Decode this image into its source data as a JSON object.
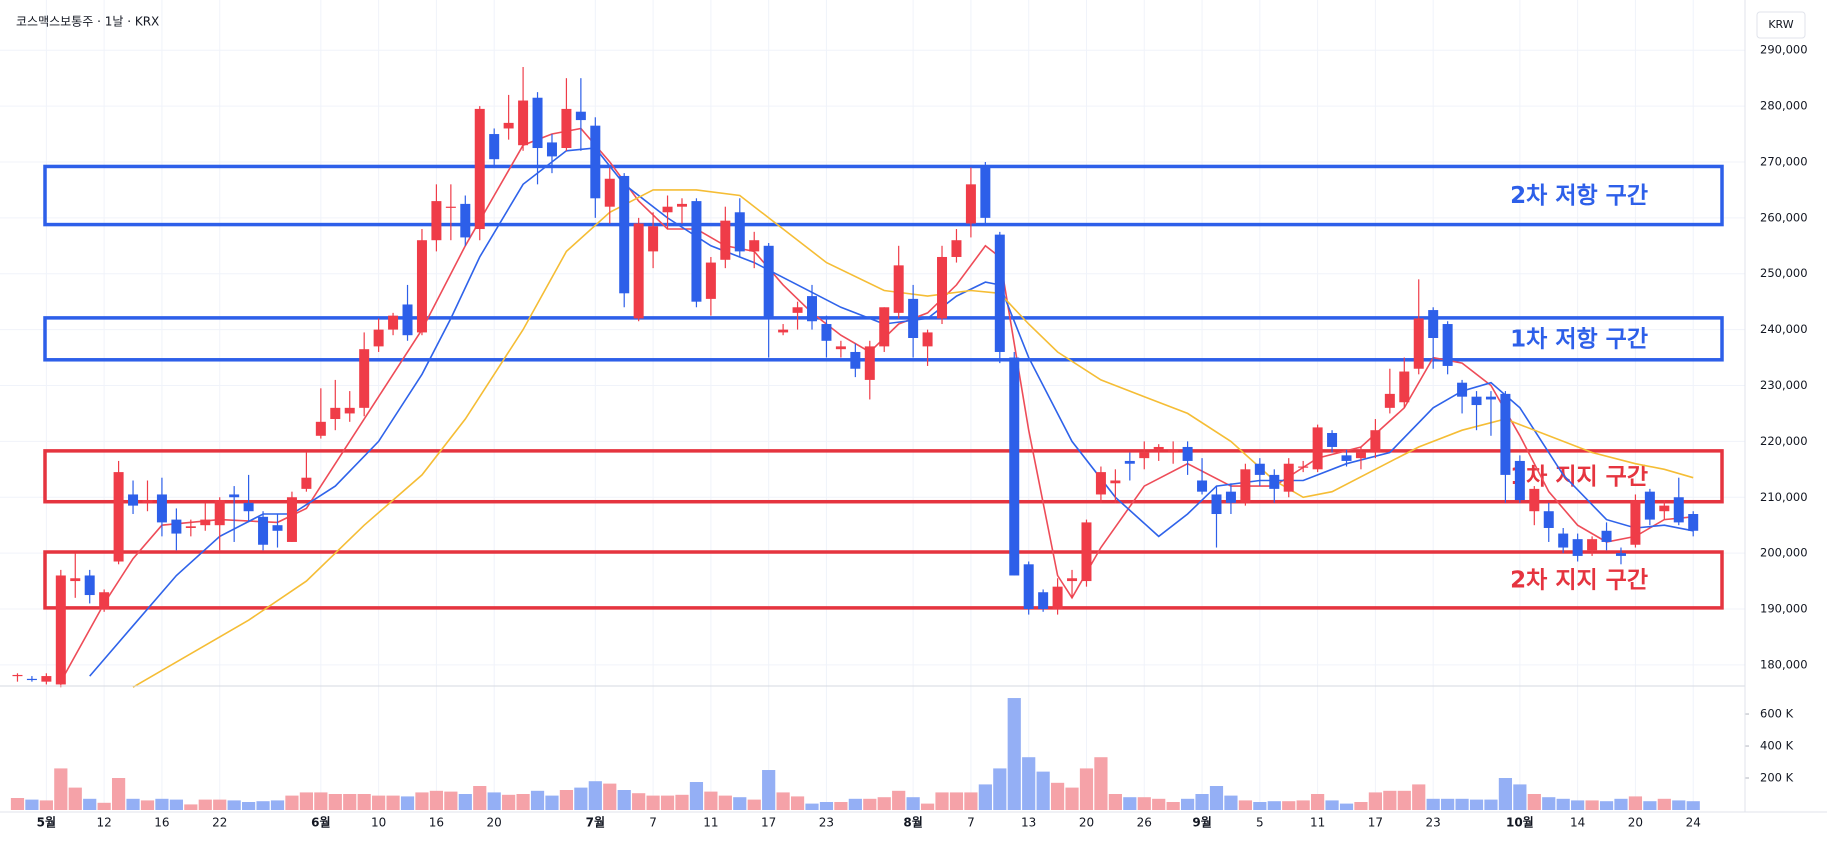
{
  "chart_data": {
    "type": "candlestick",
    "title": "코스맥스보통주 · 1날 · KRX",
    "currency": "KRW",
    "grid": true,
    "up_color": "#ef3c48",
    "down_color": "#2d5fe9",
    "categories": [
      null,
      null,
      "5월",
      null,
      null,
      null,
      "12",
      null,
      null,
      null,
      "16",
      null,
      null,
      null,
      "22",
      null,
      null,
      null,
      null,
      null,
      null,
      "6월",
      null,
      null,
      null,
      "10",
      null,
      null,
      null,
      "16",
      null,
      null,
      null,
      "20",
      null,
      null,
      null,
      null,
      null,
      null,
      "7월",
      null,
      null,
      null,
      "7",
      null,
      null,
      null,
      "11",
      null,
      null,
      null,
      "17",
      null,
      null,
      null,
      "23",
      null,
      null,
      null,
      null,
      null,
      "8월",
      null,
      null,
      null,
      "7",
      null,
      null,
      null,
      "13",
      null,
      null,
      null,
      "20",
      null,
      null,
      null,
      "26",
      null,
      null,
      null,
      "9월",
      null,
      null,
      null,
      "5",
      null,
      null,
      null,
      "11",
      null,
      null,
      null,
      "17",
      null,
      null,
      null,
      "23",
      null,
      null,
      null,
      null,
      null,
      "10월",
      null,
      null,
      null,
      "14",
      null,
      null,
      null,
      "20",
      null,
      null,
      null,
      "24"
    ],
    "ohlc": [
      [
        178000,
        178500,
        177000,
        178200
      ],
      [
        177500,
        178000,
        177000,
        177300
      ],
      [
        177000,
        178500,
        176500,
        178000
      ],
      [
        176500,
        197000,
        176000,
        196000
      ],
      [
        195000,
        200000,
        192000,
        195500
      ],
      [
        196000,
        197000,
        191000,
        192500
      ],
      [
        190000,
        193500,
        189500,
        193000
      ],
      [
        198500,
        216500,
        198000,
        214500
      ],
      [
        210500,
        213000,
        207000,
        208500
      ],
      [
        209000,
        213000,
        207500,
        209500
      ],
      [
        210500,
        213500,
        203000,
        205500
      ],
      [
        206000,
        208000,
        200500,
        203500
      ],
      [
        204500,
        206000,
        203000,
        204800
      ],
      [
        205000,
        209000,
        204000,
        206000
      ],
      [
        205000,
        210000,
        200500,
        209500
      ],
      [
        210500,
        212000,
        202000,
        210000
      ],
      [
        209000,
        214000,
        205500,
        207500
      ],
      [
        206500,
        207500,
        200500,
        201500
      ],
      [
        205000,
        207000,
        201000,
        204000
      ],
      [
        202000,
        211000,
        202000,
        210000
      ],
      [
        211500,
        218000,
        211000,
        213500
      ],
      [
        221000,
        229500,
        220500,
        223500
      ],
      [
        224000,
        231000,
        222000,
        226000
      ],
      [
        225000,
        229000,
        223500,
        226000
      ],
      [
        226000,
        239500,
        224500,
        236500
      ],
      [
        237000,
        242000,
        236000,
        240000
      ],
      [
        240000,
        243000,
        239000,
        242500
      ],
      [
        244500,
        248000,
        238000,
        239000
      ],
      [
        239500,
        258000,
        239000,
        256000
      ],
      [
        256000,
        266000,
        254000,
        263000
      ],
      [
        262000,
        266000,
        256000,
        262000
      ],
      [
        262500,
        264000,
        255000,
        256500
      ],
      [
        258000,
        280000,
        256000,
        279500
      ],
      [
        275000,
        276000,
        269000,
        270500
      ],
      [
        276000,
        282000,
        274000,
        277000
      ],
      [
        273000,
        287000,
        272000,
        281000
      ],
      [
        281500,
        282500,
        266000,
        272500
      ],
      [
        273500,
        275000,
        268000,
        271000
      ],
      [
        272500,
        285000,
        272000,
        279500
      ],
      [
        279000,
        285000,
        272000,
        277500
      ],
      [
        276500,
        278000,
        260000,
        263500
      ],
      [
        262000,
        269000,
        259000,
        267000
      ],
      [
        267500,
        268000,
        244000,
        246500
      ],
      [
        242000,
        260000,
        241500,
        259000
      ],
      [
        254000,
        261000,
        251000,
        258500
      ],
      [
        261000,
        264000,
        258000,
        262000
      ],
      [
        262000,
        263500,
        259000,
        262500
      ],
      [
        263000,
        263500,
        244000,
        245000
      ],
      [
        245500,
        253000,
        242500,
        252000
      ],
      [
        252500,
        262000,
        251000,
        259500
      ],
      [
        261000,
        263500,
        253000,
        254000
      ],
      [
        254000,
        257500,
        251000,
        256000
      ],
      [
        255000,
        255500,
        235000,
        242000
      ],
      [
        239500,
        241000,
        239000,
        240000
      ],
      [
        243000,
        245000,
        240000,
        244000
      ],
      [
        246000,
        248000,
        240000,
        241500
      ],
      [
        241000,
        242500,
        235000,
        238000
      ],
      [
        236500,
        238000,
        235000,
        237000
      ],
      [
        236000,
        237500,
        231500,
        233000
      ],
      [
        231000,
        238000,
        227500,
        237000
      ],
      [
        237000,
        244000,
        236000,
        244000
      ],
      [
        243000,
        255000,
        242000,
        251500
      ],
      [
        245500,
        248000,
        235000,
        238500
      ],
      [
        237000,
        240000,
        233500,
        239500
      ],
      [
        242000,
        255000,
        241000,
        253000
      ],
      [
        253000,
        258000,
        252000,
        256000
      ],
      [
        259000,
        269000,
        256500,
        266000
      ],
      [
        269000,
        270000,
        259000,
        260000
      ],
      [
        257000,
        257500,
        234000,
        236000
      ],
      [
        235000,
        236000,
        196000,
        196000
      ],
      [
        198000,
        198500,
        189000,
        190000
      ],
      [
        193000,
        193500,
        189500,
        190000
      ],
      [
        190000,
        195500,
        189000,
        194000
      ],
      [
        195000,
        197000,
        192000,
        195500
      ],
      [
        195000,
        206000,
        194000,
        205500
      ],
      [
        210500,
        215500,
        209000,
        214500
      ],
      [
        212500,
        215000,
        209000,
        213000
      ],
      [
        216500,
        218000,
        213000,
        216000
      ],
      [
        217000,
        220000,
        215000,
        218000
      ],
      [
        218500,
        219500,
        216500,
        219000
      ],
      [
        218000,
        220000,
        216000,
        218500
      ],
      [
        219000,
        220000,
        214000,
        216500
      ],
      [
        213000,
        217000,
        210500,
        211000
      ],
      [
        210500,
        212000,
        201000,
        207000
      ],
      [
        211000,
        212500,
        207000,
        209000
      ],
      [
        209000,
        216000,
        208500,
        215000
      ],
      [
        216000,
        217000,
        212000,
        214000
      ],
      [
        214000,
        215000,
        209000,
        211500
      ],
      [
        211000,
        217000,
        210000,
        216000
      ],
      [
        215500,
        216500,
        214500,
        215500
      ],
      [
        215000,
        223000,
        214500,
        222500
      ],
      [
        221500,
        222000,
        218000,
        219000
      ],
      [
        217500,
        218500,
        215500,
        216500
      ],
      [
        217000,
        219000,
        215000,
        218000
      ],
      [
        218000,
        224000,
        217000,
        222000
      ],
      [
        226000,
        233000,
        225000,
        228500
      ],
      [
        227000,
        235000,
        226000,
        232500
      ],
      [
        233000,
        249000,
        232000,
        242000
      ],
      [
        243500,
        244000,
        233000,
        238500
      ],
      [
        241000,
        241500,
        232000,
        233500
      ],
      [
        230500,
        231000,
        225000,
        228000
      ],
      [
        228000,
        229000,
        222000,
        226500
      ],
      [
        228000,
        229000,
        221000,
        227500
      ],
      [
        228500,
        229000,
        209000,
        214000
      ],
      [
        216500,
        217500,
        209000,
        209500
      ],
      [
        207500,
        212000,
        205000,
        211500
      ],
      [
        207500,
        209000,
        202000,
        204500
      ],
      [
        203500,
        204500,
        200000,
        201000
      ],
      [
        202500,
        203500,
        198500,
        199500
      ],
      [
        200500,
        203000,
        199500,
        202500
      ],
      [
        204000,
        205500,
        200500,
        202000
      ],
      [
        200000,
        201000,
        198000,
        199500
      ],
      [
        201500,
        210500,
        201000,
        209500
      ],
      [
        211000,
        211500,
        205000,
        206000
      ],
      [
        207500,
        209500,
        206000,
        208500
      ],
      [
        210000,
        213500,
        205000,
        205500
      ],
      [
        207000,
        207500,
        203000,
        204000
      ]
    ],
    "ylim": [
      176400,
      297200
    ],
    "yticks": [
      {
        "value": 180000,
        "label": "180,000"
      },
      {
        "value": 190000,
        "label": "190,000"
      },
      {
        "value": 200000,
        "label": "200,000"
      },
      {
        "value": 210000,
        "label": "210,000"
      },
      {
        "value": 220000,
        "label": "220,000"
      },
      {
        "value": 230000,
        "label": "230,000"
      },
      {
        "value": 240000,
        "label": "240,000"
      },
      {
        "value": 250000,
        "label": "250,000"
      },
      {
        "value": 260000,
        "label": "260,000"
      },
      {
        "value": 270000,
        "label": "270,000"
      },
      {
        "value": 280000,
        "label": "280,000"
      },
      {
        "value": 290000,
        "label": "290,000"
      }
    ],
    "volume": {
      "up_color": "#f5a2a8",
      "down_color": "#94aff5",
      "ylim": [
        0,
        769000
      ],
      "yticks": [
        {
          "value": 200000,
          "label": "200 K"
        },
        {
          "value": 400000,
          "label": "400 K"
        },
        {
          "value": 600000,
          "label": "600 K"
        }
      ],
      "values": [
        75000,
        65000,
        60000,
        260000,
        140000,
        70000,
        45000,
        200000,
        70000,
        60000,
        70000,
        65000,
        35000,
        65000,
        65000,
        60000,
        50000,
        55000,
        60000,
        90000,
        110000,
        110000,
        100000,
        100000,
        100000,
        90000,
        90000,
        85000,
        110000,
        120000,
        115000,
        100000,
        150000,
        110000,
        95000,
        100000,
        120000,
        90000,
        125000,
        140000,
        180000,
        165000,
        125000,
        105000,
        90000,
        90000,
        95000,
        175000,
        115000,
        90000,
        80000,
        65000,
        250000,
        110000,
        85000,
        40000,
        50000,
        50000,
        70000,
        70000,
        80000,
        120000,
        80000,
        40000,
        110000,
        110000,
        110000,
        160000,
        260000,
        700000,
        330000,
        240000,
        170000,
        140000,
        260000,
        330000,
        100000,
        80000,
        80000,
        70000,
        50000,
        70000,
        100000,
        150000,
        90000,
        60000,
        50000,
        55000,
        55000,
        60000,
        100000,
        60000,
        40000,
        50000,
        110000,
        120000,
        120000,
        160000,
        70000,
        70000,
        70000,
        65000,
        65000,
        200000,
        160000,
        100000,
        80000,
        70000,
        60000,
        60000,
        55000,
        70000,
        85000,
        55000,
        70000,
        60000,
        55000
      ]
    },
    "ma": [
      {
        "color": "#ee4c58",
        "x": [
          3,
          6,
          8,
          10,
          14,
          18,
          20,
          22,
          25,
          28,
          31,
          33,
          35,
          37,
          39,
          41,
          43,
          45,
          47,
          49,
          51,
          53,
          55,
          57,
          59,
          61,
          63,
          65,
          67,
          68,
          70,
          72,
          73,
          75,
          78,
          81,
          84,
          87,
          90,
          93,
          96,
          98,
          100,
          102,
          104,
          106,
          108,
          110,
          112,
          114,
          116
        ],
        "values": [
          177000,
          191000,
          199000,
          205000,
          206000,
          205500,
          208000,
          216000,
          228000,
          240000,
          255000,
          264000,
          273000,
          275000,
          276000,
          270000,
          263000,
          258000,
          258000,
          255000,
          254000,
          248000,
          243000,
          239000,
          236000,
          241000,
          243000,
          248000,
          255000,
          253000,
          222000,
          196000,
          192000,
          201000,
          212000,
          216000,
          212000,
          212000,
          217000,
          219000,
          226000,
          235000,
          234000,
          230000,
          221000,
          211000,
          205000,
          202000,
          203000,
          206000,
          206500
        ]
      },
      {
        "color": "#2f63ea",
        "x": [
          5,
          8,
          11,
          14,
          17,
          19,
          22,
          25,
          28,
          30,
          32,
          35,
          38,
          40,
          42,
          45,
          48,
          51,
          54,
          57,
          60,
          63,
          65,
          67,
          68,
          70,
          73,
          76,
          79,
          81,
          83,
          86,
          89,
          92,
          95,
          98,
          100,
          102,
          104,
          107,
          110,
          112,
          114,
          116
        ],
        "values": [
          178000,
          187000,
          196000,
          203000,
          207000,
          207000,
          212000,
          220000,
          232000,
          242000,
          253000,
          266000,
          272000,
          272500,
          266000,
          260000,
          255000,
          252000,
          248000,
          244000,
          241000,
          242000,
          246000,
          248500,
          248000,
          235000,
          220000,
          210000,
          203000,
          207000,
          212000,
          213000,
          213000,
          216000,
          218000,
          226000,
          229000,
          230500,
          226000,
          214000,
          206000,
          204500,
          205000,
          204000
        ]
      },
      {
        "color": "#f5bd35",
        "x": [
          8,
          12,
          16,
          20,
          24,
          28,
          31,
          35,
          38,
          41,
          44,
          47,
          50,
          53,
          56,
          60,
          63,
          66,
          68,
          70,
          72,
          75,
          78,
          81,
          84,
          87,
          89,
          91,
          94,
          97,
          100,
          103,
          106,
          109,
          112,
          114,
          116
        ],
        "values": [
          176000,
          182000,
          188000,
          195000,
          205000,
          214000,
          224000,
          240000,
          254000,
          261000,
          265000,
          265000,
          264000,
          258000,
          252000,
          247000,
          246000,
          247000,
          246500,
          241000,
          236000,
          231000,
          228000,
          225000,
          220000,
          213000,
          210000,
          211000,
          215000,
          219000,
          222000,
          224000,
          221000,
          218000,
          216000,
          215000,
          213500
        ]
      }
    ],
    "zones": [
      {
        "label": "2차 저항 구간",
        "top": 269200,
        "bottom": 258800,
        "color": "#2d5fe9"
      },
      {
        "label": "1차 저항 구간",
        "top": 242100,
        "bottom": 234600,
        "color": "#2d5fe9"
      },
      {
        "label": "1차 지지 구간",
        "top": 218300,
        "bottom": 209200,
        "color": "#e5343f"
      },
      {
        "label": "2차 지지 구간",
        "top": 200200,
        "bottom": 190200,
        "color": "#e5343f"
      }
    ]
  }
}
